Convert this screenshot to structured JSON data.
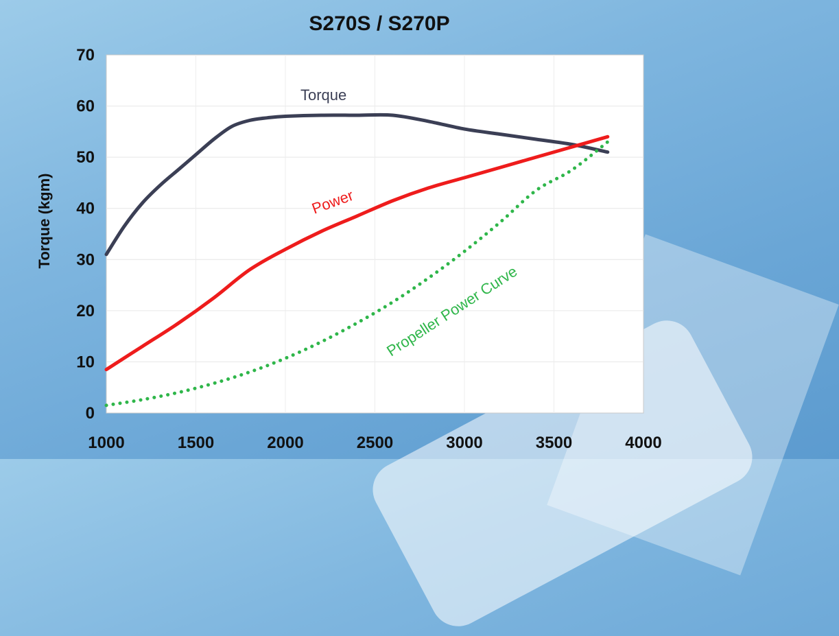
{
  "chart_data": {
    "type": "line",
    "title": "S270S / S270P",
    "ylabel": "Torque (kgm)",
    "xlabel": "",
    "xlim": [
      1000,
      4000
    ],
    "ylim": [
      0,
      70
    ],
    "x_ticks": [
      "1000",
      "1500",
      "2000",
      "2500",
      "3000",
      "3500",
      "4000"
    ],
    "y_ticks": [
      "0",
      "10",
      "20",
      "30",
      "40",
      "50",
      "60",
      "70"
    ],
    "grid": true,
    "legend": "none",
    "series": [
      {
        "name": "Torque",
        "color": "#3b3f55",
        "style": "solid",
        "x": [
          1000,
          1100,
          1200,
          1300,
          1400,
          1500,
          1600,
          1700,
          1800,
          1900,
          2000,
          2200,
          2400,
          2600,
          2800,
          3000,
          3200,
          3400,
          3600,
          3800
        ],
        "y": [
          31,
          36.5,
          41,
          44.5,
          47.5,
          50.5,
          53.5,
          56,
          57.2,
          57.7,
          58,
          58.2,
          58.2,
          58.2,
          57,
          55.5,
          54.5,
          53.5,
          52.5,
          51
        ]
      },
      {
        "name": "Power",
        "color": "#ee1c1c",
        "style": "solid",
        "x": [
          1000,
          1200,
          1400,
          1600,
          1800,
          2000,
          2200,
          2400,
          2600,
          2800,
          3000,
          3200,
          3400,
          3600,
          3800
        ],
        "y": [
          8.5,
          13,
          17.5,
          22.5,
          28,
          32,
          35.5,
          38.5,
          41.5,
          44,
          46,
          48,
          50,
          52,
          54
        ]
      },
      {
        "name": "Propeller Power Curve",
        "color": "#2fb64a",
        "style": "dotted",
        "x": [
          1000,
          1200,
          1400,
          1600,
          1800,
          2000,
          2200,
          2400,
          2600,
          2800,
          3000,
          3200,
          3400,
          3600,
          3800
        ],
        "y": [
          1.5,
          2.6,
          4,
          5.8,
          8,
          10.7,
          13.9,
          17.6,
          21.7,
          26.4,
          31.6,
          37.3,
          43.5,
          47.5,
          53
        ]
      }
    ],
    "annotations": [
      {
        "text": "Torque",
        "series": "Torque"
      },
      {
        "text": "Power",
        "series": "Power"
      },
      {
        "text": "Propeller Power Curve",
        "series": "Propeller Power Curve"
      }
    ]
  }
}
